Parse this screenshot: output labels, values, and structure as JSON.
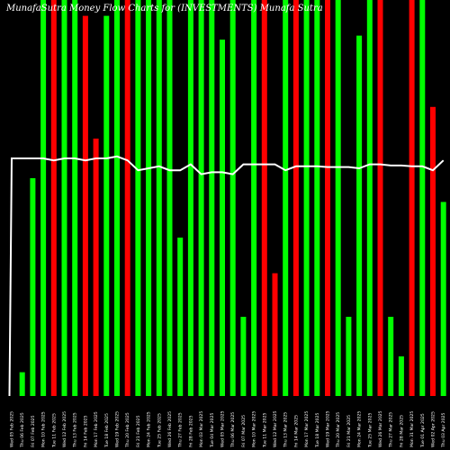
{
  "chart_data": {
    "type": "bar",
    "title": "MunafaSutra Money Flow Charts for (INVESTMENTS) Munafa Sutra",
    "colors": {
      "up": "#00ff00",
      "down": "#ff0000",
      "line": "#ffffff",
      "background": "#000000"
    },
    "ylim": [
      0,
      100
    ],
    "bars": [
      {
        "label": "Wed 05 Feb 2025",
        "value": 0,
        "dir": "down"
      },
      {
        "label": "Thu 06 Feb 2025",
        "value": 6,
        "dir": "up"
      },
      {
        "label": "Fri 07 Feb 2025",
        "value": 55,
        "dir": "up"
      },
      {
        "label": "Mon 10 Feb 2025",
        "value": 100,
        "dir": "up"
      },
      {
        "label": "Tue 11 Feb 2025",
        "value": 100,
        "dir": "down"
      },
      {
        "label": "Wed 12 Feb 2025",
        "value": 100,
        "dir": "up"
      },
      {
        "label": "Thu 13 Feb 2025",
        "value": 100,
        "dir": "up"
      },
      {
        "label": "Fri 14 Feb 2025",
        "value": 96,
        "dir": "down"
      },
      {
        "label": "Mon 17 Feb 2025",
        "value": 65,
        "dir": "down"
      },
      {
        "label": "Tue 18 Feb 2025",
        "value": 96,
        "dir": "up"
      },
      {
        "label": "Wed 19 Feb 2025",
        "value": 100,
        "dir": "up"
      },
      {
        "label": "Thu 20 Feb 2025",
        "value": 100,
        "dir": "down"
      },
      {
        "label": "Fri 21 Feb 2025",
        "value": 100,
        "dir": "up"
      },
      {
        "label": "Mon 24 Feb 2025",
        "value": 100,
        "dir": "up"
      },
      {
        "label": "Tue 25 Feb 2025",
        "value": 100,
        "dir": "up"
      },
      {
        "label": "Wed 26 Feb 2025",
        "value": 100,
        "dir": "up"
      },
      {
        "label": "Thu 27 Feb 2025",
        "value": 40,
        "dir": "up"
      },
      {
        "label": "Fri 28 Feb 2025",
        "value": 100,
        "dir": "up"
      },
      {
        "label": "Mon 03 Mar 2025",
        "value": 100,
        "dir": "up"
      },
      {
        "label": "Tue 04 Mar 2025",
        "value": 100,
        "dir": "up"
      },
      {
        "label": "Wed 05 Mar 2025",
        "value": 90,
        "dir": "up"
      },
      {
        "label": "Thu 06 Mar 2025",
        "value": 100,
        "dir": "up"
      },
      {
        "label": "Fri 07 Mar 2025",
        "value": 20,
        "dir": "up"
      },
      {
        "label": "Mon 10 Mar 2025",
        "value": 100,
        "dir": "up"
      },
      {
        "label": "Tue 11 Mar 2025",
        "value": 100,
        "dir": "down"
      },
      {
        "label": "Wed 12 Mar 2025",
        "value": 31,
        "dir": "down"
      },
      {
        "label": "Thu 13 Mar 2025",
        "value": 100,
        "dir": "up"
      },
      {
        "label": "Fri 14 Mar 2025",
        "value": 100,
        "dir": "down"
      },
      {
        "label": "Mon 17 Mar 2025",
        "value": 100,
        "dir": "up"
      },
      {
        "label": "Tue 18 Mar 2025",
        "value": 100,
        "dir": "up"
      },
      {
        "label": "Wed 19 Mar 2025",
        "value": 100,
        "dir": "down"
      },
      {
        "label": "Thu 20 Mar 2025",
        "value": 100,
        "dir": "up"
      },
      {
        "label": "Fri 21 Mar 2025",
        "value": 20,
        "dir": "up"
      },
      {
        "label": "Mon 24 Mar 2025",
        "value": 91,
        "dir": "up"
      },
      {
        "label": "Tue 25 Mar 2025",
        "value": 100,
        "dir": "up"
      },
      {
        "label": "Wed 26 Mar 2025",
        "value": 100,
        "dir": "down"
      },
      {
        "label": "Thu 27 Mar 2025",
        "value": 20,
        "dir": "up"
      },
      {
        "label": "Fri 28 Mar 2025",
        "value": 10,
        "dir": "up"
      },
      {
        "label": "Mon 31 Mar 2025",
        "value": 100,
        "dir": "down"
      },
      {
        "label": "Tue 01 Apr 2025",
        "value": 100,
        "dir": "up"
      },
      {
        "label": "Wed 02 Apr 2025",
        "value": 73,
        "dir": "down"
      },
      {
        "label": "Thu 03 Apr 2025",
        "value": 49,
        "dir": "up"
      }
    ],
    "line": [
      60,
      60,
      60,
      60,
      59.5,
      60,
      60,
      59.5,
      60,
      60,
      60.5,
      59.5,
      57,
      57.5,
      58,
      57,
      57,
      58.5,
      56,
      56.5,
      56.5,
      56,
      58.5,
      58.5,
      58.5,
      58.5,
      57,
      58,
      58,
      58,
      57.8,
      57.8,
      57.8,
      57.5,
      58.5,
      58.5,
      58.2,
      58.2,
      58,
      58,
      57,
      59.5
    ],
    "line_start": 0
  }
}
